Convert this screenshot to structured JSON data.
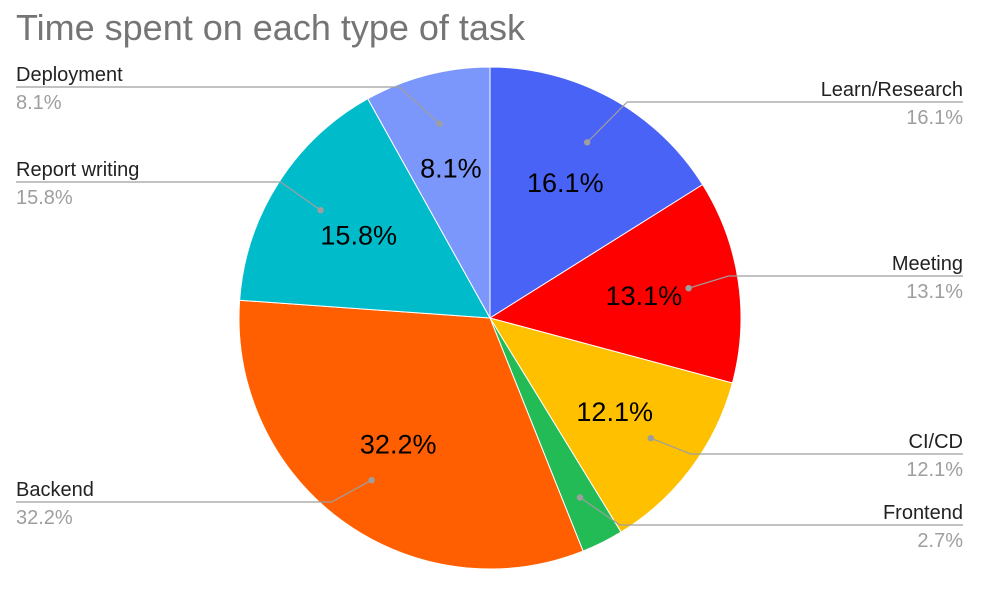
{
  "chart_data": {
    "type": "pie",
    "title": "Time spent on each type of task",
    "slices": [
      {
        "label": "Learn/Research",
        "value": 16.1,
        "display": "16.1%",
        "color": "#4a63f7"
      },
      {
        "label": "Meeting",
        "value": 13.1,
        "display": "13.1%",
        "color": "#ff0000"
      },
      {
        "label": "CI/CD",
        "value": 12.1,
        "display": "12.1%",
        "color": "#ffc000"
      },
      {
        "label": "Frontend",
        "value": 2.7,
        "display": "2.7%",
        "color": "#22bb55"
      },
      {
        "label": "Backend",
        "value": 32.2,
        "display": "32.2%",
        "color": "#ff5f00"
      },
      {
        "label": "Report writing",
        "value": 15.8,
        "display": "15.8%",
        "color": "#00bccb"
      },
      {
        "label": "Deployment",
        "value": 8.1,
        "display": "8.1%",
        "color": "#7b97fb"
      }
    ],
    "legend_placement": "sides",
    "slice_labels_shown_for_min_percent": 5
  }
}
